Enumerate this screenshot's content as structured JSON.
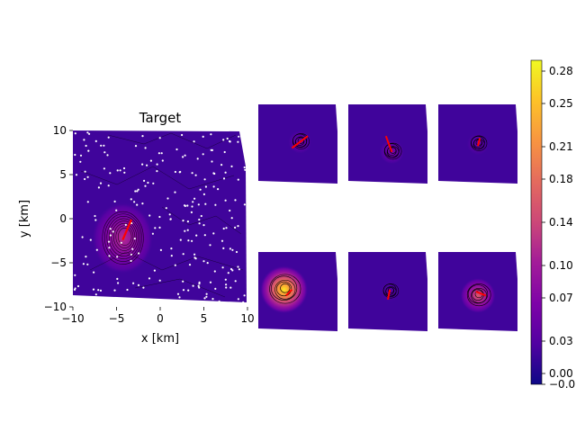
{
  "colors": {
    "colormap": "plasma",
    "vector": "#ff0000",
    "stations": "#ffffff",
    "contour": "#000000"
  },
  "chart_data": {
    "type": "heatmap",
    "colorbar": {
      "vmin": -0.01,
      "vmax": 0.29,
      "ticks": [
        -0.01,
        0.0,
        0.03,
        0.07,
        0.1,
        0.14,
        0.18,
        0.21,
        0.25,
        0.28
      ],
      "tick_labels": [
        "−0.0",
        "0.00",
        "0.03",
        "0.07",
        "0.10",
        "0.14",
        "0.18",
        "0.21",
        "0.25",
        "0.28"
      ]
    },
    "panels": [
      {
        "title": "Target",
        "xlabel": "x [km]",
        "ylabel": "y [km]",
        "xlim": [
          -10,
          10
        ],
        "ylim": [
          -10,
          10
        ],
        "xticks": [
          -10,
          -5,
          0,
          5,
          10
        ],
        "yticks": [
          -10,
          -5,
          0,
          5,
          10
        ],
        "peak": {
          "x": -4.3,
          "y": -2.2,
          "value": 0.12
        },
        "vector": [
          [
            -4.3,
            -2.4
          ],
          [
            -3.3,
            -0.1
          ]
        ],
        "station_count": 230
      },
      {
        "title": "",
        "peak": {
          "x": 0.1,
          "y": 0.1,
          "value": 0.05
        },
        "vector": [
          [
            -0.3,
            -0.2
          ],
          [
            0.5,
            0.4
          ]
        ]
      },
      {
        "title": "",
        "peak": {
          "x": 0.2,
          "y": -0.4,
          "value": 0.06
        },
        "vector": [
          [
            0.2,
            -0.4
          ],
          [
            -0.1,
            0.4
          ]
        ]
      },
      {
        "title": "",
        "peak": {
          "x": 0.0,
          "y": 0.0,
          "value": 0.04
        },
        "vector": [
          [
            0.0,
            -0.1
          ],
          [
            0.1,
            0.3
          ]
        ]
      },
      {
        "title": "",
        "peak": {
          "x": -0.7,
          "y": 0.1,
          "value": 0.28
        },
        "vector": [
          [
            -0.6,
            -0.2
          ],
          [
            -0.3,
            0.1
          ]
        ]
      },
      {
        "title": "",
        "peak": {
          "x": 0.1,
          "y": 0.0,
          "value": 0.03
        },
        "vector": [
          [
            0.1,
            0.1
          ],
          [
            0.0,
            -0.4
          ]
        ]
      },
      {
        "title": "",
        "peak": {
          "x": 0.0,
          "y": -0.2,
          "value": 0.16
        },
        "vector": [
          [
            -0.1,
            0.0
          ],
          [
            0.4,
            -0.2
          ]
        ]
      }
    ]
  }
}
